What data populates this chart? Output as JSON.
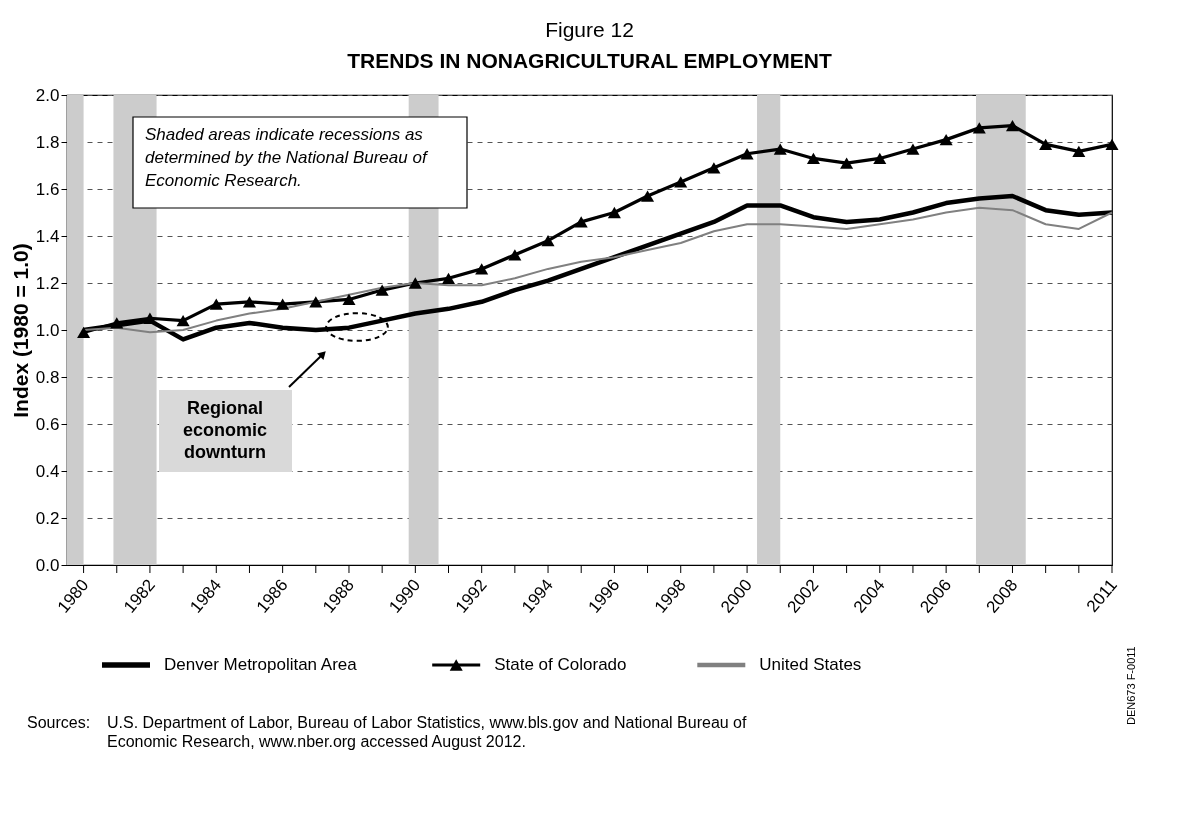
{
  "chart_data": {
    "type": "line",
    "title": "Figure 12",
    "subtitle": "TRENDS IN NONAGRICULTURAL EMPLOYMENT",
    "ylabel": "Index (1980 = 1.0)",
    "x": [
      1980,
      1981,
      1982,
      1983,
      1984,
      1985,
      1986,
      1987,
      1988,
      1989,
      1990,
      1991,
      1992,
      1993,
      1994,
      1995,
      1996,
      1997,
      1998,
      1999,
      2000,
      2001,
      2002,
      2003,
      2004,
      2005,
      2006,
      2007,
      2008,
      2009,
      2010,
      2011
    ],
    "series": [
      {
        "name": "Denver Metropolitan Area",
        "color": "#000000",
        "marker": "none",
        "values": [
          1.0,
          1.02,
          1.04,
          0.96,
          1.01,
          1.03,
          1.01,
          1.0,
          1.01,
          1.04,
          1.07,
          1.09,
          1.12,
          1.17,
          1.21,
          1.26,
          1.31,
          1.36,
          1.41,
          1.46,
          1.53,
          1.53,
          1.48,
          1.46,
          1.47,
          1.5,
          1.54,
          1.56,
          1.57,
          1.51,
          1.49,
          1.5
        ]
      },
      {
        "name": "State of Colorado",
        "color": "#000000",
        "marker": "triangle",
        "values": [
          0.99,
          1.03,
          1.05,
          1.04,
          1.11,
          1.12,
          1.11,
          1.12,
          1.13,
          1.17,
          1.2,
          1.22,
          1.26,
          1.32,
          1.38,
          1.46,
          1.5,
          1.57,
          1.63,
          1.69,
          1.75,
          1.77,
          1.73,
          1.71,
          1.73,
          1.77,
          1.81,
          1.86,
          1.87,
          1.79,
          1.76,
          1.79
        ]
      },
      {
        "name": "United States",
        "color": "#808080",
        "marker": "none",
        "values": [
          1.0,
          1.01,
          0.99,
          1.0,
          1.04,
          1.07,
          1.09,
          1.12,
          1.15,
          1.18,
          1.2,
          1.19,
          1.19,
          1.22,
          1.26,
          1.29,
          1.31,
          1.34,
          1.37,
          1.42,
          1.45,
          1.45,
          1.44,
          1.43,
          1.45,
          1.47,
          1.5,
          1.52,
          1.51,
          1.45,
          1.43,
          1.5
        ]
      }
    ],
    "xlim": [
      1979.5,
      2011
    ],
    "xticks": [
      1980,
      {
        "value": 1981,
        "label": null
      },
      1982,
      {
        "value": 1983,
        "label": null
      },
      1984,
      {
        "value": 1985,
        "label": null
      },
      1986,
      {
        "value": 1987,
        "label": null
      },
      1988,
      {
        "value": 1989,
        "label": null
      },
      1990,
      {
        "value": 1991,
        "label": null
      },
      1992,
      {
        "value": 1993,
        "label": null
      },
      1994,
      {
        "value": 1995,
        "label": null
      },
      1996,
      {
        "value": 1997,
        "label": null
      },
      1998,
      {
        "value": 1999,
        "label": null
      },
      2000,
      {
        "value": 2001,
        "label": null
      },
      2002,
      {
        "value": 2003,
        "label": null
      },
      2004,
      {
        "value": 2005,
        "label": null
      },
      2006,
      {
        "value": 2007,
        "label": null
      },
      2008,
      {
        "value": 2009,
        "label": null
      },
      {
        "value": 2010,
        "label": null
      },
      2011
    ],
    "ylim": [
      0,
      2.0
    ],
    "yticks": [
      {
        "value": 0,
        "label": "0.0"
      },
      {
        "value": 0.2,
        "label": "0.2"
      },
      {
        "value": 0.4,
        "label": "0.4"
      },
      {
        "value": 0.6,
        "label": "0.6"
      },
      {
        "value": 0.8,
        "label": "0.8"
      },
      {
        "value": 1.0,
        "label": "1.0"
      },
      {
        "value": 1.2,
        "label": "1.2"
      },
      {
        "value": 1.4,
        "label": "1.4"
      },
      {
        "value": 1.6,
        "label": "1.6"
      },
      {
        "value": 1.8,
        "label": "1.8"
      },
      {
        "value": 2.0,
        "label": "2.0"
      }
    ],
    "bands": [
      {
        "axis": "x",
        "from": 1979.5,
        "to": 1980.0,
        "color": "#cccccc"
      },
      {
        "axis": "x",
        "from": 1980.9,
        "to": 1982.2,
        "color": "#cccccc"
      },
      {
        "axis": "x",
        "from": 1989.8,
        "to": 1990.7,
        "color": "#cccccc"
      },
      {
        "axis": "x",
        "from": 2000.3,
        "to": 2001.0,
        "color": "#cccccc"
      },
      {
        "axis": "x",
        "from": 2006.9,
        "to": 2008.4,
        "color": "#cccccc"
      }
    ],
    "annotations": [
      "Shaded areas indicate recessions as determined by the National Bureau of Economic Research.",
      "Regional economic downturn",
      "Sources: U.S. Department of Labor, Bureau of Labor Statistics, www.bls.gov and National Bureau of Economic Research, www.nber.org accessed August 2012.",
      "DEN673 F-0011"
    ],
    "grid": "y",
    "line_style": "solid",
    "legend": "bottom"
  }
}
